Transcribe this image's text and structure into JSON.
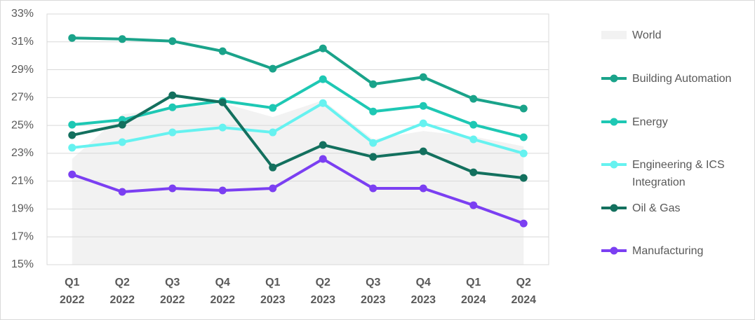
{
  "chart_data": {
    "type": "line",
    "categories": [
      "Q1 2022",
      "Q2 2022",
      "Q3 2022",
      "Q4 2022",
      "Q1 2023",
      "Q2 2023",
      "Q3 2023",
      "Q4 2023",
      "Q1 2024",
      "Q2 2024"
    ],
    "ylim": [
      15,
      33
    ],
    "yticks": [
      {
        "value": 15,
        "label": "15%"
      },
      {
        "value": 17,
        "label": "17%"
      },
      {
        "value": 19,
        "label": "19%"
      },
      {
        "value": 21,
        "label": "21%"
      },
      {
        "value": 23,
        "label": "23%"
      },
      {
        "value": 25,
        "label": "25%"
      },
      {
        "value": 27,
        "label": "27%"
      },
      {
        "value": 29,
        "label": "29%"
      },
      {
        "value": 31,
        "label": "31%"
      },
      {
        "value": 33,
        "label": "33%"
      }
    ],
    "grid": true,
    "series": [
      {
        "name": "World",
        "color": "#f2f2f2",
        "style": "area",
        "values": [
          22.6,
          25.8,
          26.2,
          26.6,
          25.6,
          26.8,
          24.0,
          24.6,
          24.2,
          23.5
        ]
      },
      {
        "name": "Building Automation",
        "color": "#1aa38a",
        "values": [
          31.28,
          31.2,
          31.05,
          30.33,
          29.07,
          30.53,
          27.96,
          28.47,
          26.91,
          26.21
        ]
      },
      {
        "name": "Energy",
        "color": "#1ec8b4",
        "values": [
          25.05,
          25.4,
          26.3,
          26.76,
          26.26,
          28.32,
          26.0,
          26.4,
          25.05,
          24.15
        ]
      },
      {
        "name": "Engineering & ICS Integration",
        "color": "#66f2f0",
        "values": [
          23.4,
          23.8,
          24.5,
          24.85,
          24.5,
          26.6,
          23.74,
          25.15,
          24.0,
          22.99
        ]
      },
      {
        "name": "Oil & Gas",
        "color": "#13705e",
        "values": [
          24.3,
          25.05,
          27.16,
          26.66,
          21.98,
          23.6,
          22.74,
          23.14,
          21.63,
          21.23
        ]
      },
      {
        "name": "Manufacturing",
        "color": "#7b3ff2",
        "values": [
          21.48,
          20.23,
          20.48,
          20.33,
          20.48,
          22.59,
          20.48,
          20.48,
          19.27,
          17.96
        ]
      }
    ]
  }
}
